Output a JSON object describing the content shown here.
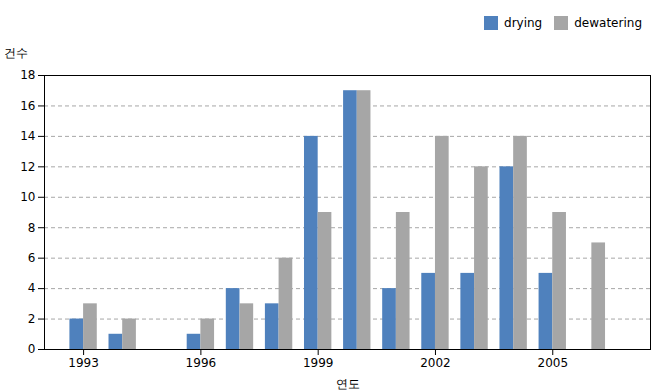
{
  "chart_data": {
    "type": "bar",
    "x": [
      1993,
      1994,
      1995,
      1996,
      1997,
      1998,
      1999,
      2000,
      2001,
      2002,
      2003,
      2004,
      2005,
      2006
    ],
    "series": [
      {
        "name": "drying",
        "color": "#4f81bd",
        "values": [
          2,
          1,
          0,
          1,
          4,
          3,
          14,
          17,
          4,
          5,
          5,
          12,
          5,
          0
        ]
      },
      {
        "name": "dewatering",
        "color": "#a6a6a6",
        "values": [
          3,
          2,
          0,
          2,
          3,
          6,
          9,
          17,
          9,
          14,
          12,
          14,
          9,
          7
        ]
      }
    ],
    "xlabel": "연도",
    "ylabel": "건수",
    "xlim": [
      1992.0,
      2007.5
    ],
    "xticks": [
      1993,
      1996,
      1999,
      2002,
      2005
    ],
    "ylim": [
      0,
      18
    ],
    "yticks": [
      0,
      2,
      4,
      6,
      8,
      10,
      12,
      14,
      16,
      18
    ],
    "grid": true,
    "legend": "upper right"
  }
}
